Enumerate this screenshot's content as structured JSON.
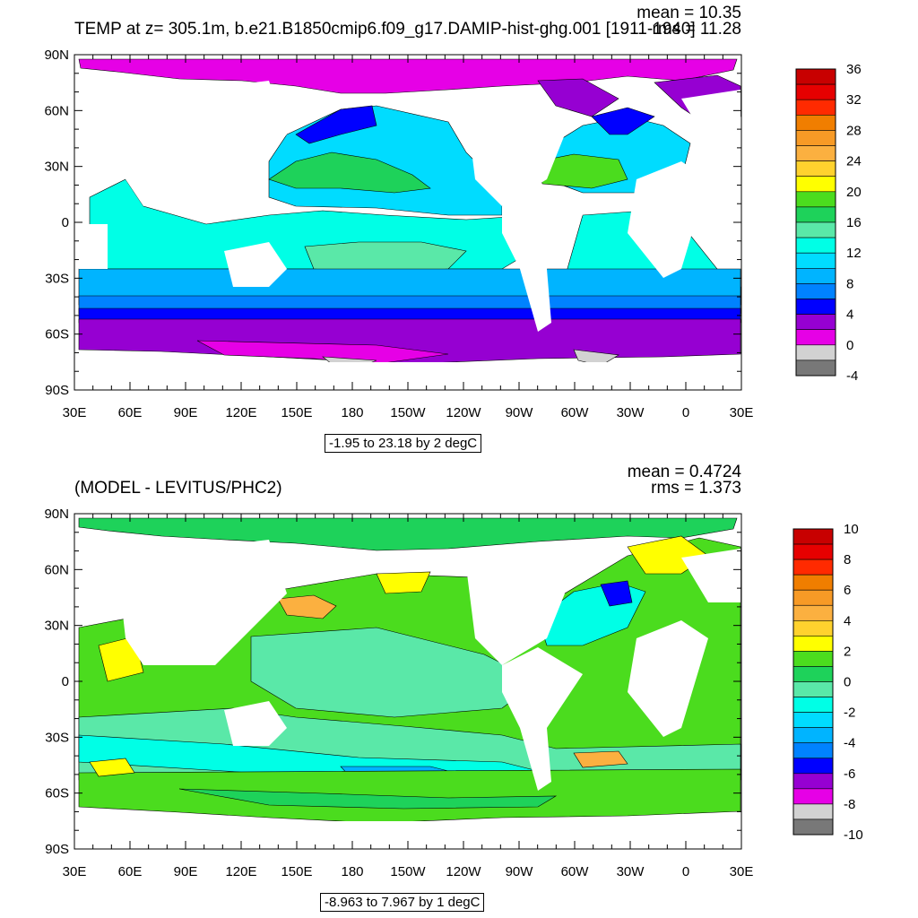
{
  "chart_data": [
    {
      "type": "heatmap",
      "title": "TEMP at z= 305.1m, b.e21.B1850cmip6.f09_g17.DAMIP-hist-ghg.001 [1911-1940]",
      "stats": {
        "mean": "mean = 10.35",
        "rms": "rms = 11.28"
      },
      "info": "-1.95 to 23.18 by 2 degC",
      "xticks": [
        "30E",
        "60E",
        "90E",
        "120E",
        "150E",
        "180",
        "150W",
        "120W",
        "90W",
        "60W",
        "30W",
        "0",
        "30E"
      ],
      "yticks": [
        "90N",
        "60N",
        "30N",
        "0",
        "30S",
        "60S",
        "90S"
      ],
      "colorbar": {
        "labels": [
          "36",
          "32",
          "28",
          "24",
          "20",
          "16",
          "12",
          "8",
          "4",
          "0",
          "-4"
        ],
        "colors_top_to_bottom": [
          "#c80000",
          "#e60000",
          "#ff2a00",
          "#f07e00",
          "#f79a26",
          "#fbb040",
          "#ffd22e",
          "#ffff00",
          "#4bdc1e",
          "#1ed25a",
          "#5ae8a8",
          "#00ffe6",
          "#00dcff",
          "#00b4ff",
          "#0082ff",
          "#0000ff",
          "#9600d2",
          "#e600e6",
          "#d2d2d2",
          "#787878"
        ]
      }
    },
    {
      "type": "heatmap",
      "title": "(MODEL - LEVITUS/PHC2)",
      "stats": {
        "mean": "mean = 0.4724",
        "rms": "rms = 1.373"
      },
      "info": "-8.963 to 7.967 by 1 degC",
      "xticks": [
        "30E",
        "60E",
        "90E",
        "120E",
        "150E",
        "180",
        "150W",
        "120W",
        "90W",
        "60W",
        "30W",
        "0",
        "30E"
      ],
      "yticks": [
        "90N",
        "60N",
        "30N",
        "0",
        "30S",
        "60S",
        "90S"
      ],
      "colorbar": {
        "labels": [
          "10",
          "8",
          "6",
          "4",
          "2",
          "0",
          "-2",
          "-4",
          "-6",
          "-8",
          "-10"
        ],
        "colors_top_to_bottom": [
          "#c80000",
          "#e60000",
          "#ff2a00",
          "#f07e00",
          "#f79a26",
          "#fbb040",
          "#ffd22e",
          "#ffff00",
          "#4bdc1e",
          "#1ed25a",
          "#5ae8a8",
          "#00ffe6",
          "#00dcff",
          "#00b4ff",
          "#0082ff",
          "#0000ff",
          "#9600d2",
          "#e600e6",
          "#d2d2d2",
          "#787878"
        ]
      }
    }
  ]
}
